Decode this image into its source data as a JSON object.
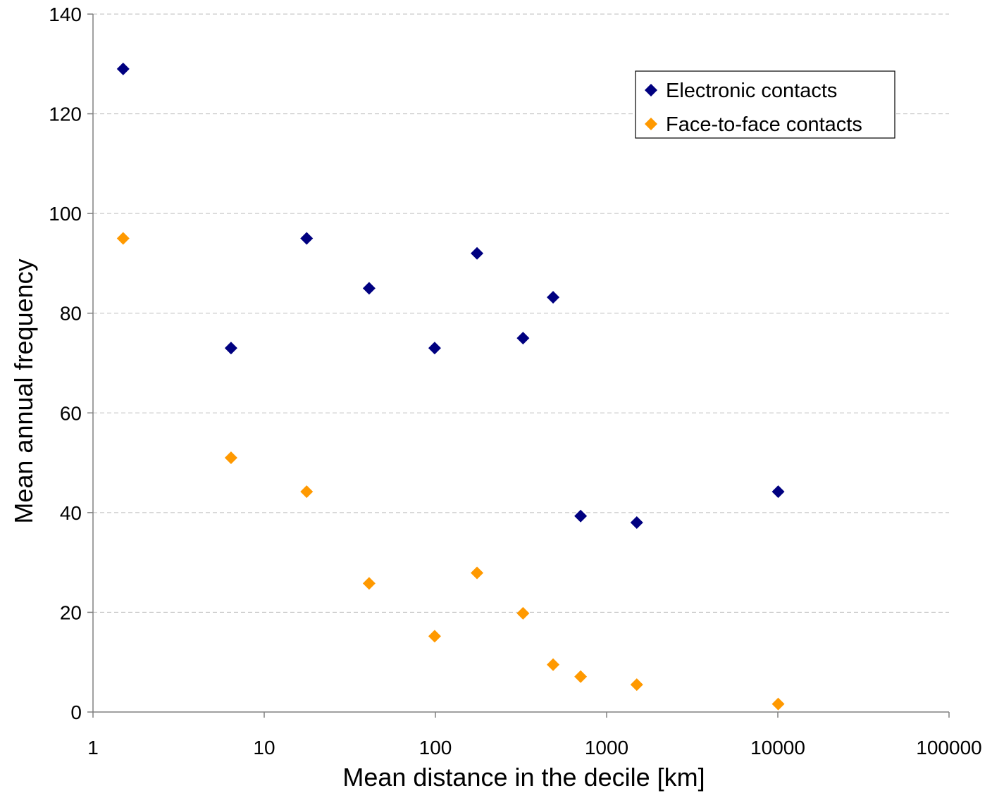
{
  "chart_data": {
    "type": "scatter",
    "title": "",
    "xlabel": "Mean distance in the decile [km]",
    "ylabel": "Mean annual frequency",
    "x_scale": "log",
    "xlim": [
      1,
      100000
    ],
    "ylim": [
      0,
      140
    ],
    "x_ticks": [
      1,
      10,
      100,
      1000,
      10000,
      100000
    ],
    "x_tick_labels": [
      "1",
      "10",
      "100",
      "1000",
      "10000",
      "100000"
    ],
    "y_ticks": [
      0,
      20,
      40,
      60,
      80,
      100,
      120,
      140
    ],
    "y_tick_labels": [
      "0",
      "20",
      "40",
      "60",
      "80",
      "100",
      "120",
      "140"
    ],
    "grid": "horizontal dashed",
    "legend_position": "top-right",
    "marker": "diamond",
    "series": [
      {
        "name": "Electronic contacts",
        "color": "#000080",
        "points": [
          {
            "x": 1.5,
            "y": 129
          },
          {
            "x": 6.4,
            "y": 73
          },
          {
            "x": 17.7,
            "y": 95
          },
          {
            "x": 41,
            "y": 85
          },
          {
            "x": 99,
            "y": 73
          },
          {
            "x": 175,
            "y": 92
          },
          {
            "x": 325,
            "y": 75
          },
          {
            "x": 487,
            "y": 83.2
          },
          {
            "x": 705,
            "y": 39.3
          },
          {
            "x": 1500,
            "y": 38
          },
          {
            "x": 10050,
            "y": 44.2
          }
        ]
      },
      {
        "name": "Face-to-face contacts",
        "color": "#FF9900",
        "points": [
          {
            "x": 1.5,
            "y": 95
          },
          {
            "x": 6.4,
            "y": 51
          },
          {
            "x": 17.7,
            "y": 44.2
          },
          {
            "x": 41,
            "y": 25.8
          },
          {
            "x": 99,
            "y": 15.2
          },
          {
            "x": 175,
            "y": 27.9
          },
          {
            "x": 325,
            "y": 19.8
          },
          {
            "x": 487,
            "y": 9.5
          },
          {
            "x": 705,
            "y": 7.1
          },
          {
            "x": 1500,
            "y": 5.5
          },
          {
            "x": 10050,
            "y": 1.6
          }
        ]
      }
    ]
  }
}
